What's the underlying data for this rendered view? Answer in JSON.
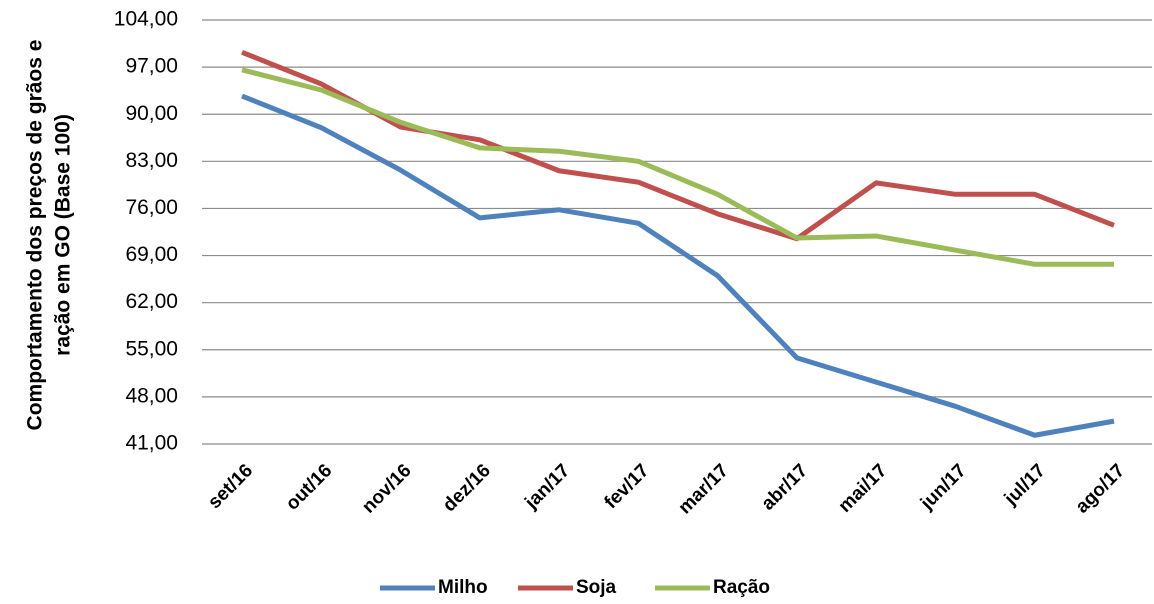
{
  "chart_data": {
    "type": "line",
    "ylabel": [
      "Comportamento dos preços de  grãos e",
      "ração em GO (Base 100)"
    ],
    "categories": [
      "set/16",
      "out/16",
      "nov/16",
      "dez/16",
      "jan/17",
      "fev/17",
      "mar/17",
      "abr/17",
      "mai/17",
      "jun/17",
      "jul/17",
      "ago/17"
    ],
    "series": [
      {
        "name": "Milho",
        "color": "#4f81bd",
        "values": [
          92.7,
          88.0,
          81.7,
          74.6,
          75.8,
          73.8,
          66.0,
          53.8,
          50.2,
          46.6,
          42.3,
          44.4
        ]
      },
      {
        "name": "Soja",
        "color": "#c0504d",
        "values": [
          99.2,
          94.5,
          88.1,
          86.2,
          81.6,
          79.9,
          75.2,
          71.5,
          79.8,
          78.1,
          78.1,
          73.5
        ]
      },
      {
        "name": "Ração",
        "color": "#9bbb59",
        "values": [
          96.6,
          93.6,
          88.8,
          85.0,
          84.5,
          83.0,
          78.1,
          71.6,
          71.9,
          69.8,
          67.7,
          67.7
        ]
      }
    ],
    "ylim": [
      41,
      104
    ],
    "yticks": [
      {
        "value": 41,
        "label": "41,00"
      },
      {
        "value": 48,
        "label": "48,00"
      },
      {
        "value": 55,
        "label": "55,00"
      },
      {
        "value": 62,
        "label": "62,00"
      },
      {
        "value": 69,
        "label": "69,00"
      },
      {
        "value": 76,
        "label": "76,00"
      },
      {
        "value": 83,
        "label": "83,00"
      },
      {
        "value": 90,
        "label": "90,00"
      },
      {
        "value": 97,
        "label": "97,00"
      },
      {
        "value": 104,
        "label": "104,00"
      }
    ],
    "grid": true,
    "legend": "bottom"
  }
}
